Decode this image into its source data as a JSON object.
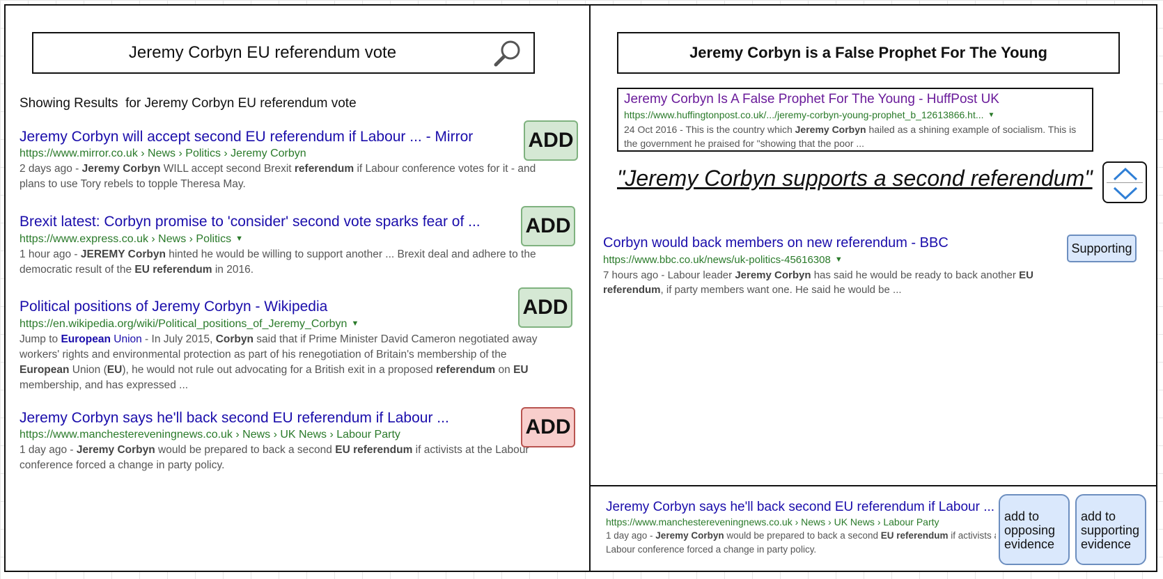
{
  "search": {
    "query": "Jeremy Corbyn EU referendum vote",
    "showing_label": "Showing Results  for Jeremy Corbyn EU referendum vote"
  },
  "results": [
    {
      "title": "Jeremy Corbyn will accept second EU referendum if Labour ... - Mirror",
      "url": "https://www.mirror.co.uk › News › Politics › Jeremy Corbyn",
      "has_caret": false,
      "age": "2 days ago - ",
      "snippet_html": "<b>Jeremy Corbyn</b> WILL accept second Brexit <b>referendum</b> if Labour conference votes for it - and plans to use Tory rebels to topple Theresa May.",
      "add_label": "ADD",
      "add_color": "#d5e8d4"
    },
    {
      "title": "Brexit latest: Corbyn promise to 'consider' second vote sparks fear of ...",
      "url": "https://www.express.co.uk › News › Politics",
      "has_caret": true,
      "age": "1 hour ago - ",
      "snippet_html": "<b>JEREMY Corbyn</b> hinted he would be willing to support another ... Brexit deal and adhere to the democratic result of the <b>EU referendum</b> in 2016.",
      "add_label": "ADD",
      "add_color": "#d5e8d4"
    },
    {
      "title": "Political positions of Jeremy Corbyn - Wikipedia",
      "url": "https://en.wikipedia.org/wiki/Political_positions_of_Jeremy_Corbyn",
      "has_caret": true,
      "age": "Jump to ",
      "snippet_html": "<span class=\"jump\">European</span> <span style=\"color:#1a0dab\">Union</span> - In July 2015, <b>Corbyn</b> said that if Prime Minister David Cameron negotiated away workers' rights and environmental protection as part of his renegotiation of Britain's membership of the <b>European</b> Union (<b>EU</b>), he would not rule out advocating for a British exit in a proposed <b>referendum</b> on <b>EU</b> membership, and has expressed ...",
      "add_label": "ADD",
      "add_color": "#d5e8d4"
    },
    {
      "title": "Jeremy Corbyn says he'll back second EU referendum if Labour ...",
      "url": "https://www.manchestereveningnews.co.uk › News › UK News › Labour Party",
      "has_caret": false,
      "age": "1 day ago - ",
      "snippet_html": "<b>Jeremy Corbyn</b> would be prepared to back a second <b>EU referendum</b> if activists at the Labour conference forced a change in party policy.",
      "add_label": "ADD",
      "add_color": "#f8cecc"
    }
  ],
  "claim": {
    "title": "Jeremy Corbyn is a False Prophet For The Young",
    "source": {
      "title": "Jeremy Corbyn Is A False Prophet For The Young - HuffPost UK",
      "url": "https://www.huffingtonpost.co.uk/.../jeremy-corbyn-young-prophet_b_12613866.ht...",
      "age": "24 Oct 2016 - ",
      "snippet_html": "This is the country which <b>Jeremy Corbyn</b> hailed as a shining example of socialism. This is the government he praised for \"showing that the poor ..."
    },
    "quote": "\"Jeremy Corbyn supports a second referendum\""
  },
  "evidence": {
    "title": "Corbyn would back members on new referendum - BBC",
    "url": "https://www.bbc.co.uk/news/uk-politics-45616308",
    "age": "7 hours ago - ",
    "snippet_html": "Labour leader <b>Jeremy Corbyn</b> has said he would be ready to back another <b>EU referendum</b>, if party members want one. He said he would be ...",
    "badge": "Supporting"
  },
  "pending": {
    "title": "Jeremy Corbyn says he'll back second EU referendum if Labour ...",
    "url": "https://www.manchestereveningnews.co.uk › News › UK News › Labour Party",
    "age": "1 day ago - ",
    "snippet_line1_html": "<b>Jeremy Corbyn</b> would be prepared to back a second <b>EU referendum</b> if activists at the",
    "snippet_line2": "Labour conference forced a change in party policy.",
    "opposing_label": "add to opposing evidence",
    "supporting_label": "add to supporting evidence"
  }
}
